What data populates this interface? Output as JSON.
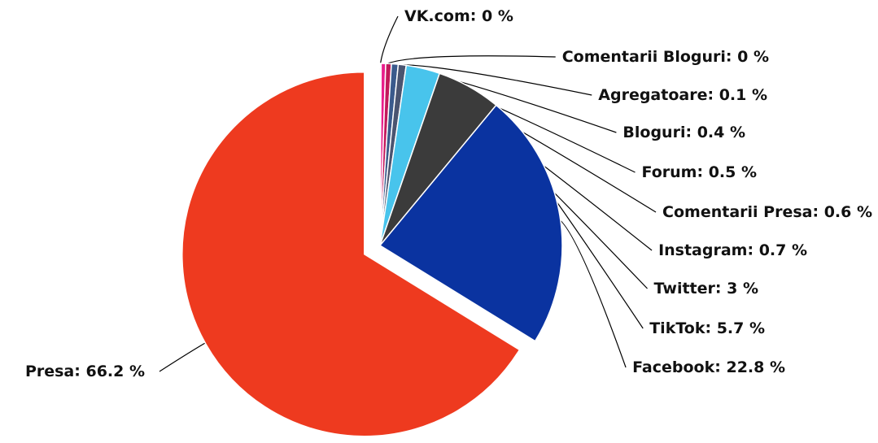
{
  "chart_data": {
    "type": "pie",
    "categories": [
      "VK.com",
      "Comentarii Bloguri",
      "Agregatoare",
      "Bloguri",
      "Forum",
      "Comentarii Presa",
      "Instagram",
      "Twitter",
      "TikTok",
      "Facebook",
      "Presa"
    ],
    "values": [
      0,
      0,
      0.1,
      0.4,
      0.5,
      0.6,
      0.7,
      3,
      5.7,
      22.8,
      66.2
    ],
    "value_labels": [
      "0 %",
      "0 %",
      "0.1 %",
      "0.4 %",
      "0.5 %",
      "0.6 %",
      "0.7 %",
      "3 %",
      "5.7 %",
      "22.8 %",
      "66.2 %"
    ],
    "colors": [
      "#b9e86a",
      "#f2d14b",
      "#8fd14f",
      "#e91e8c",
      "#c2185b",
      "#3a5a8c",
      "#4a5470",
      "#48c4ec",
      "#3b3b3b",
      "#0a33a0",
      "#ee3a1f"
    ]
  }
}
